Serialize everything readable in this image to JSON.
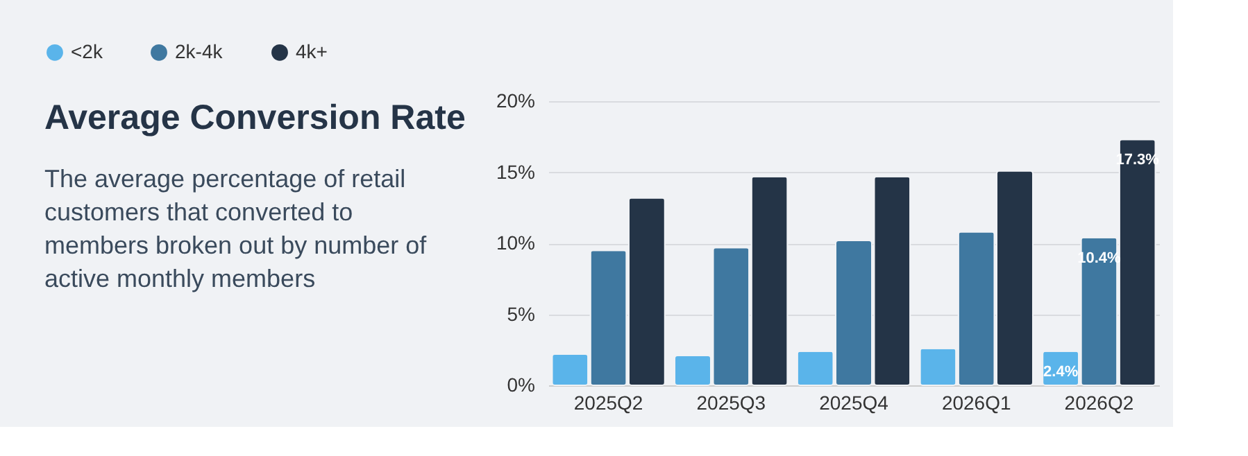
{
  "chart_data": {
    "type": "bar",
    "title": "Average Conversion Rate",
    "subtitle": "The average percentage of retail customers that converted to members broken out by number of active monthly members",
    "categories": [
      "2025Q2",
      "2025Q3",
      "2025Q4",
      "2026Q1",
      "2026Q2"
    ],
    "series": [
      {
        "name": "<2k",
        "color": "#5ab4ea",
        "values": [
          2.2,
          2.1,
          2.4,
          2.6,
          2.4
        ],
        "value_labels": [
          null,
          null,
          null,
          null,
          "2.4%"
        ]
      },
      {
        "name": "2k-4k",
        "color": "#3f78a0",
        "values": [
          9.5,
          9.7,
          10.2,
          10.8,
          10.4
        ],
        "value_labels": [
          null,
          null,
          null,
          null,
          "10.4%"
        ]
      },
      {
        "name": "4k+",
        "color": "#243447",
        "values": [
          13.2,
          14.7,
          14.7,
          15.1,
          17.3
        ],
        "value_labels": [
          null,
          null,
          null,
          null,
          "17.3%"
        ]
      }
    ],
    "ylim": [
      0,
      20
    ],
    "yticks": [
      {
        "value": 0,
        "label": "0%"
      },
      {
        "value": 5,
        "label": "5%"
      },
      {
        "value": 10,
        "label": "10%"
      },
      {
        "value": 15,
        "label": "15%"
      },
      {
        "value": 20,
        "label": "20%"
      }
    ],
    "grid": "y",
    "legend": "top"
  }
}
